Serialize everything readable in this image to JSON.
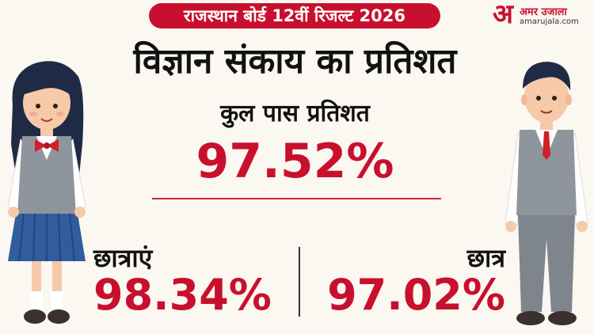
{
  "banner": {
    "text": "राजस्थान बोर्ड 12वीं रिजल्ट 2026"
  },
  "logo": {
    "mark": "अ",
    "name": "अमर उजाला",
    "url": "amarujala.com"
  },
  "title": "विज्ञान संकाय का प्रतिशत",
  "subtitle": "कुल पास प्रतिशत",
  "total_pass": "97.52%",
  "girls": {
    "label": "छात्राएं",
    "value": "98.34%"
  },
  "boys": {
    "label": "छात्र",
    "value": "97.02%"
  },
  "colors": {
    "accent": "#c8102e",
    "background": "#fbf7f1"
  },
  "icons": [
    "girl-student-illustration",
    "boy-student-illustration"
  ]
}
